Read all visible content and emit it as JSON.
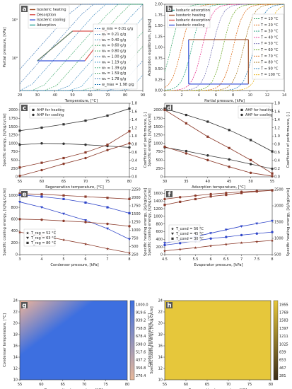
{
  "chart_data": [
    {
      "id": "a",
      "type": "line",
      "xlabel": "Temperature, [°C]",
      "ylabel": "Partial pressure, [kPa]",
      "xlim": [
        20,
        90
      ],
      "ylim_log": [
        0.7,
        20
      ],
      "y_scale": "log",
      "x_ticks": [
        "20",
        "30",
        "40",
        "50",
        "60",
        "70",
        "80",
        "90"
      ],
      "y_ticks": [
        "10⁰",
        "10¹"
      ],
      "legend_process": [
        "Isosteric heating",
        "Desorption",
        "Isosteric cooling",
        "Adsorption"
      ],
      "legend_isosteres": [
        "w_min = 0.01 g/g",
        "w₁ = 0.21 g/g",
        "w₂ = 0.40 g/g",
        "w₃ = 0.60 g/g",
        "w₄ = 0.80 g/g",
        "w₅ = 1.00 g/g",
        "w₆ = 1.19 g/g",
        "w₇ = 1.39 g/g",
        "w₈ = 1.59 g/g",
        "w₉ = 1.78 g/g",
        "w_max = 1.98 g/g"
      ]
    },
    {
      "id": "b",
      "type": "line",
      "xlabel": "Partial pressure, [kPa]",
      "ylabel": "Adsorption equilibrium, [kg/kg]",
      "xlim": [
        0,
        15
      ],
      "ylim": [
        0,
        2.0
      ],
      "x_ticks": [
        "0",
        "2",
        "4",
        "6",
        "8",
        "10",
        "12",
        "14"
      ],
      "y_ticks": [
        "0.00",
        "0.25",
        "0.50",
        "0.75",
        "1.00",
        "1.25",
        "1.50",
        "1.75",
        "2.00"
      ],
      "legend_process": [
        "Isobaric adsorption",
        "Isosteric heating",
        "Isobaric desorption",
        "Isosteric cooling"
      ],
      "legend_isotherms": [
        "T = 10 °C",
        "T = 20 °C",
        "T = 30 °C",
        "T = 40 °C",
        "T = 50 °C",
        "T = 60 °C",
        "T = 70 °C",
        "T = 80 °C",
        "T = 90 °C",
        "T = 100 °C"
      ]
    },
    {
      "id": "c",
      "type": "line",
      "xlabel": "Regeneration temperature, [°C]",
      "ylabel": "Specific energy, [kJ/kg/cycle]",
      "ylabel_right": "Coefficient of performance, [-]",
      "x": [
        55,
        60,
        65,
        70,
        75,
        80
      ],
      "ylim": [
        0,
        2200
      ],
      "ylim_right": [
        0,
        1.8
      ],
      "legend": [
        "AHP for heating",
        "AHP for cooling"
      ],
      "series": [
        {
          "name": "AHP for heating",
          "values": [
            1380,
            1470,
            1570,
            1680,
            1830,
            2040
          ]
        },
        {
          "name": "AHP for cooling",
          "values": [
            960,
            1000,
            990,
            960,
            920,
            880
          ]
        },
        {
          "values": [
            280,
            420,
            560,
            730,
            960,
            1360
          ]
        },
        {
          "values": [
            30,
            200,
            390,
            560,
            800,
            1000
          ]
        }
      ]
    },
    {
      "id": "d",
      "type": "line",
      "xlabel": "Adsorption temperature, [°C]",
      "ylabel": "Specific energy, [kJ/kg/cycle]",
      "ylabel_right": "Coefficient of performance, [-]",
      "x": [
        30,
        35,
        40,
        45,
        50,
        55
      ],
      "ylim": [
        0,
        2200
      ],
      "ylim_right": [
        0,
        1.8
      ],
      "legend": [
        "AHP for heating",
        "AHP for cooling"
      ],
      "series": [
        {
          "name": "AHP for heating",
          "values": [
            2040,
            1850,
            1650,
            1400,
            1100,
            760
          ]
        },
        {
          "name": "AHP for cooling",
          "values": [
            880,
            770,
            640,
            520,
            380,
            240
          ]
        },
        {
          "values": [
            2000,
            1600,
            1200,
            860,
            500,
            100
          ]
        },
        {
          "values": [
            900,
            700,
            500,
            300,
            120,
            20
          ]
        }
      ]
    },
    {
      "id": "e",
      "type": "line",
      "xlabel": "Condenser pressure, [kPa]",
      "ylabel": "Specific cooling energy, [kJ/kg/cycle]",
      "ylabel_right": "Specific heating energy, [kJ/kg/cycle]",
      "x": [
        3,
        4,
        5,
        6,
        7,
        8
      ],
      "ylim": [
        0,
        1100
      ],
      "ylim_right": [
        250,
        2250
      ],
      "legend": [
        "T_reg = 52 °C",
        "T_reg = 63 °C",
        "T_reg = 80 °C"
      ],
      "series": [
        {
          "name": "T_reg = 52 °C",
          "values": [
            380,
            320,
            250,
            180,
            100,
            30
          ]
        },
        {
          "name": "T_reg = 63 °C",
          "values": [
            890,
            800,
            690,
            580,
            440,
            260
          ]
        },
        {
          "name": "T_reg = 80 °C",
          "values": [
            1030,
            1020,
            1000,
            980,
            960,
            940
          ]
        },
        {
          "values": [
            600,
            590,
            570,
            550,
            520,
            480
          ]
        },
        {
          "values": [
            1010,
            980,
            940,
            880,
            800,
            700
          ]
        }
      ]
    },
    {
      "id": "f",
      "type": "line",
      "xlabel": "Evaporator pressure, [kPa]",
      "ylabel": "Specific cooling energy, [kJ/kg/cycle]",
      "ylabel_right": "Specific heating energy, [kJ/kg/cycle]",
      "x": [
        4.5,
        5.0,
        5.5,
        6.0,
        6.5,
        7.0,
        7.5,
        8.0
      ],
      "ylim": [
        0,
        1700
      ],
      "ylim_right": [
        250,
        2750
      ],
      "legend": [
        "T_cond = 56 °C",
        "T_cond = 45 °C",
        "T_cond = 30 °C"
      ],
      "series": [
        {
          "name": "T_cond = 56 °C",
          "values": [
            100,
            140,
            180,
            230,
            270,
            310,
            340,
            370
          ]
        },
        {
          "name": "T_cond = 45 °C",
          "values": [
            300,
            380,
            470,
            560,
            650,
            740,
            810,
            880
          ]
        },
        {
          "name": "T_cond = 30 °C",
          "values": [
            1300,
            1380,
            1450,
            1520,
            1560,
            1610,
            1650,
            1680
          ]
        },
        {
          "values": [
            1450,
            1500,
            1540,
            1580,
            1610,
            1640,
            1660,
            1680
          ]
        },
        {
          "values": [
            250,
            300,
            360,
            420,
            460,
            510,
            550,
            590
          ]
        }
      ]
    },
    {
      "id": "g",
      "type": "heatmap",
      "xlabel": "Regeneration temperature, [°C]",
      "ylabel": "Condenser temperature, [°C]",
      "colorbar_label": "Specific cooling energy, [kJ/kg/cycle]",
      "x_ticks": [
        "55",
        "60",
        "65",
        "70",
        "75",
        "80"
      ],
      "y_ticks": [
        "10",
        "12",
        "14",
        "16",
        "18",
        "20",
        "22",
        "24"
      ],
      "colorbar_ticks": [
        "1000.0",
        "919.6",
        "839.2",
        "758.8",
        "678.4",
        "598.0",
        "517.6",
        "437.2",
        "356.8",
        "276.4"
      ]
    },
    {
      "id": "h",
      "type": "heatmap",
      "xlabel": "Regeneration temperature, [°C]",
      "ylabel": "Condenser temperature, [°C]",
      "colorbar_label": "Specific heating energy, [kJ/kg/cycle]",
      "x_ticks": [
        "55",
        "60",
        "65",
        "70",
        "75",
        "80"
      ],
      "y_ticks": [
        "10",
        "12",
        "14",
        "16",
        "18",
        "20",
        "22",
        "24"
      ],
      "colorbar_ticks": [
        "1955",
        "1769",
        "1583",
        "1397",
        "1211",
        "1025",
        "839",
        "653",
        "467",
        "281"
      ]
    }
  ],
  "colors": {
    "letter_bg": "#555555",
    "heating_red": "#a0522d",
    "desorption_red": "#d9534f",
    "cooling_blue": "#3b56d9",
    "adsorption_green": "#2aa198",
    "marker_dark": "#333333",
    "marker_blue": "#3046c9",
    "marker_brown": "#8b3a2a"
  }
}
